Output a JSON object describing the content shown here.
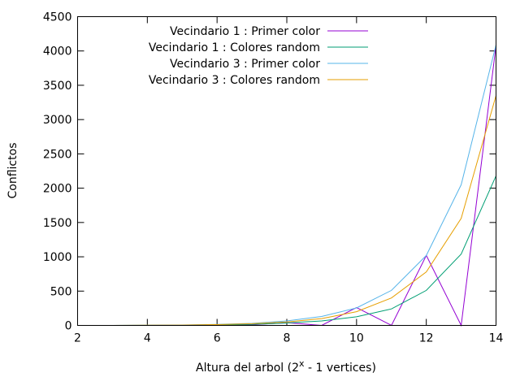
{
  "chart_data": {
    "type": "line",
    "title": "",
    "xlabel_main": "Altura del arbol (2",
    "xlabel_sup": "x",
    "xlabel_rest": " - 1 vertices)",
    "ylabel": "Conflictos",
    "xlim": [
      2,
      14
    ],
    "ylim": [
      0,
      4500
    ],
    "xticks": [
      2,
      4,
      6,
      8,
      10,
      12,
      14
    ],
    "yticks": [
      0,
      500,
      1000,
      1500,
      2000,
      2500,
      3000,
      3500,
      4000,
      4500
    ],
    "grid": false,
    "legend_position": "top-left",
    "series": [
      {
        "name": "Vecindario 1 : Primer color",
        "color": "#9400d3",
        "x": [
          2,
          3,
          4,
          5,
          6,
          7,
          8,
          9,
          10,
          11,
          12,
          13,
          14
        ],
        "y": [
          0,
          0,
          0,
          2,
          5,
          10,
          40,
          0,
          260,
          0,
          1020,
          0,
          4080
        ]
      },
      {
        "name": "Vecindario 1 : Colores random",
        "color": "#009e73",
        "x": [
          2,
          3,
          4,
          5,
          6,
          7,
          8,
          9,
          10,
          11,
          12,
          13,
          14
        ],
        "y": [
          0,
          0,
          1,
          3,
          8,
          15,
          35,
          65,
          125,
          240,
          510,
          1040,
          2180
        ]
      },
      {
        "name": "Vecindario 3 : Primer color",
        "color": "#56b4e9",
        "x": [
          2,
          3,
          4,
          5,
          6,
          7,
          8,
          9,
          10,
          11,
          12,
          13,
          14
        ],
        "y": [
          0,
          0,
          2,
          6,
          15,
          30,
          65,
          130,
          255,
          510,
          1020,
          2050,
          4090
        ]
      },
      {
        "name": "Vecindario 3 : Colores random",
        "color": "#e69f00",
        "x": [
          2,
          3,
          4,
          5,
          6,
          7,
          8,
          9,
          10,
          11,
          12,
          13,
          14
        ],
        "y": [
          0,
          0,
          2,
          5,
          12,
          25,
          50,
          100,
          200,
          400,
          780,
          1560,
          3350
        ]
      }
    ]
  }
}
